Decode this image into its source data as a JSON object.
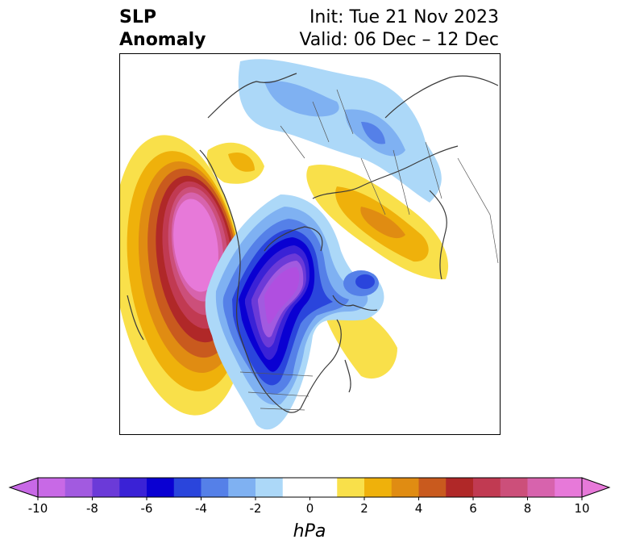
{
  "title": {
    "left_line1": "SLP",
    "left_line2": "Anomaly",
    "right_line1": "Init: Tue 21 Nov 2023",
    "right_line2": "Valid: 06 Dec – 12 Dec"
  },
  "colorbar": {
    "unit": "hPa",
    "ticks": [
      "-10",
      "-8",
      "-6",
      "-4",
      "-2",
      "0",
      "2",
      "4",
      "6",
      "8",
      "10"
    ],
    "tick_values": [
      -10,
      -8,
      -6,
      -4,
      -2,
      0,
      2,
      4,
      6,
      8,
      10
    ],
    "range": [
      -10,
      10
    ],
    "extend": "both",
    "colors": [
      "#c869e6",
      "#a25ae0",
      "#6b3ad8",
      "#3a22d6",
      "#0a00d2",
      "#2a45dc",
      "#5580e8",
      "#7fb1f2",
      "#acd8f8",
      "#ffffff",
      "#ffffff",
      "#f9e04a",
      "#efb10b",
      "#e08c12",
      "#c95a1e",
      "#b02828",
      "#c13a52",
      "#cc4f7a",
      "#d763ad",
      "#e779d9"
    ]
  },
  "colors": {
    "negative_max": "#b04fe0",
    "negative_core": "#0a00d2",
    "positive_max": "#e779d9",
    "positive_core": "#b02828",
    "map_border": "#000000",
    "coastline": "#3a3a3a"
  }
}
